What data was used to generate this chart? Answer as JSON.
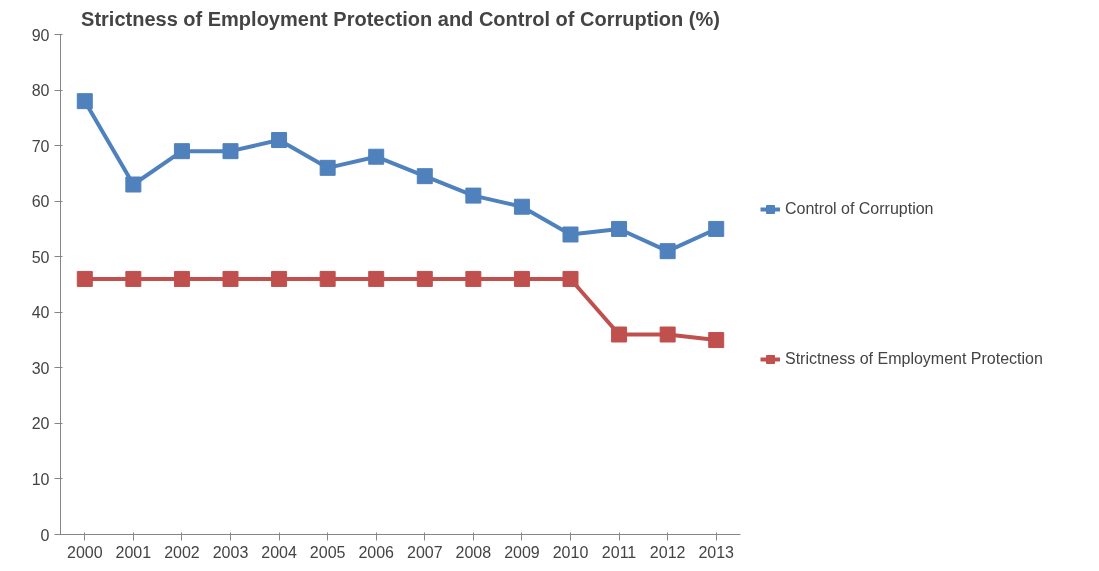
{
  "chart_data": {
    "type": "line",
    "title": "Strictness of Employment Protection and Control of Corruption (%)",
    "categories": [
      "2000",
      "2001",
      "2002",
      "2003",
      "2004",
      "2005",
      "2006",
      "2007",
      "2008",
      "2009",
      "2010",
      "2011",
      "2012",
      "2013"
    ],
    "series": [
      {
        "name": "Control of Corruption",
        "color": "#4f81bd",
        "values": [
          78,
          63,
          69,
          69,
          71,
          66,
          68,
          64.5,
          61,
          59,
          54,
          55,
          51,
          55
        ]
      },
      {
        "name": "Strictness of Employment Protection",
        "color": "#c0504d",
        "values": [
          46,
          46,
          46,
          46,
          46,
          46,
          46,
          46,
          46,
          46,
          46,
          36,
          36,
          35
        ]
      }
    ],
    "ylim": [
      0,
      90
    ],
    "yticks": [
      0,
      10,
      20,
      30,
      40,
      50,
      60,
      70,
      80,
      90
    ],
    "grid": false,
    "legend": "right",
    "marker": "square",
    "line_style": "solid"
  }
}
